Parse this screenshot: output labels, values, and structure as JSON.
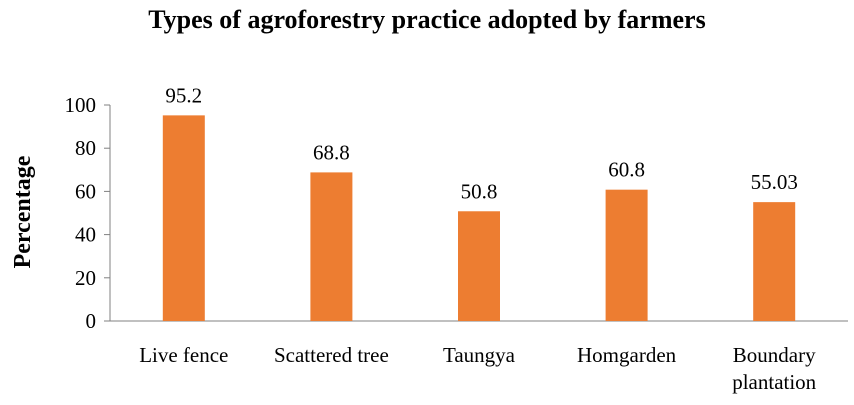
{
  "chart_data": {
    "type": "bar",
    "title": "Types of agroforestry practice  adopted by farmers",
    "xlabel": "",
    "ylabel": "Percentage",
    "categories": [
      "Live fence",
      "Scattered tree",
      "Taungya",
      "Homgarden",
      "Boundary plantation"
    ],
    "category_lines": [
      [
        "Live fence"
      ],
      [
        "Scattered tree"
      ],
      [
        "Taungya"
      ],
      [
        "Homgarden"
      ],
      [
        "Boundary",
        "plantation"
      ]
    ],
    "values": [
      95.2,
      68.8,
      50.8,
      60.8,
      55.03
    ],
    "data_labels": [
      "95.2",
      "68.8",
      "50.8",
      "60.8",
      "55.03"
    ],
    "ylim": [
      0,
      100
    ],
    "yticks": [
      0,
      20,
      40,
      60,
      80,
      100
    ],
    "grid": false,
    "legend": "none",
    "bar_color": "#ED7D31",
    "axis_color": "#808080"
  }
}
